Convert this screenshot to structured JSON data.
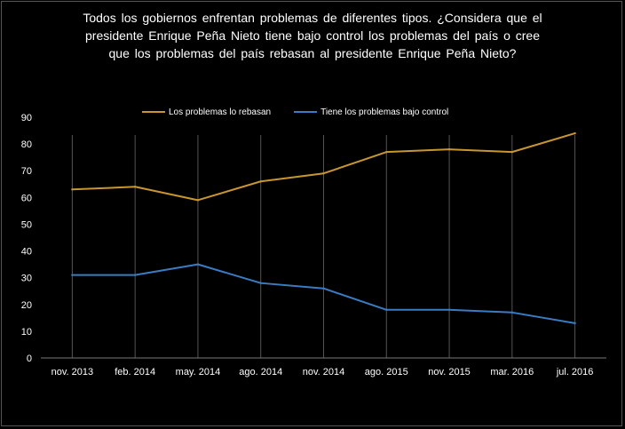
{
  "title_lines": [
    "Todos los gobiernos  enfrentan  problemas  de diferentes tipos. ¿Considera  que el",
    "presidente  Enrique  Peña Nieto tiene bajo  control  los problemas  del país o cree",
    "que los problemas  del país rebasan al presidente  Enrique  Peña Nieto?"
  ],
  "chart_data": {
    "type": "line",
    "categories": [
      "nov. 2013",
      "feb. 2014",
      "may. 2014",
      "ago. 2014",
      "nov. 2014",
      "ago. 2015",
      "nov. 2015",
      "mar. 2016",
      "jul. 2016"
    ],
    "series": [
      {
        "name": "Los problemas lo rebasan",
        "color": "#c8962e",
        "values": [
          63,
          64,
          59,
          66,
          69,
          77,
          78,
          77,
          84
        ]
      },
      {
        "name": "Tiene los problemas bajo control",
        "color": "#3a7cc4",
        "values": [
          31,
          31,
          35,
          28,
          26,
          18,
          18,
          17,
          13
        ]
      }
    ],
    "yticks": [
      0,
      10,
      20,
      30,
      40,
      50,
      60,
      70,
      80,
      90
    ],
    "ylim": [
      0,
      90
    ],
    "grid": "vertical",
    "legend": "top"
  }
}
